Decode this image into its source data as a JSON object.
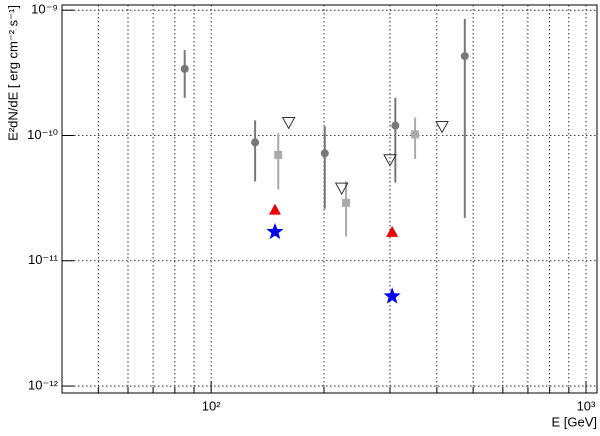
{
  "chart_data": {
    "type": "scatter",
    "xlabel": "E [GeV]",
    "ylabel": "E²dN/dE [ erg cm⁻² s⁻¹]",
    "xlog": true,
    "ylog": true,
    "grid": true,
    "xlim": [
      40,
      1070
    ],
    "ylim": [
      8.8e-13,
      1.1e-09
    ],
    "xticks": [
      {
        "value": 100,
        "label": "10²"
      },
      {
        "value": 1000,
        "label": "10³"
      }
    ],
    "xgrid_minor": [
      50,
      60,
      70,
      80,
      90,
      200,
      300,
      400,
      500,
      600,
      700,
      800,
      900
    ],
    "yticks": [
      {
        "value": 1e-12,
        "label": "10⁻¹²"
      },
      {
        "value": 1e-11,
        "label": "10⁻¹¹"
      },
      {
        "value": 1e-10,
        "label": "10⁻¹⁰"
      },
      {
        "value": 1e-09,
        "label": "10⁻⁹"
      }
    ],
    "series": [
      {
        "marker": "circle",
        "color": "#777777",
        "x": [
          85,
          131,
          201,
          310,
          475
        ],
        "values": [
          3.4e-10,
          8.8e-11,
          7.2e-11,
          1.2e-10,
          4.3e-10
        ],
        "lower": [
          2e-10,
          4.3e-11,
          2.6e-11,
          4.2e-11,
          2.2e-11
        ],
        "upper": [
          4.8e-10,
          1.32e-10,
          1.18e-10,
          2e-10,
          8.5e-10
        ]
      },
      {
        "marker": "square",
        "color": "#aaaaaa",
        "x": [
          151,
          229,
          350
        ],
        "values": [
          7e-11,
          2.9e-11,
          1.02e-10
        ],
        "lower": [
          3.7e-11,
          1.56e-11,
          6.5e-11
        ],
        "upper": [
          1.04e-10,
          4.3e-11,
          1.39e-10
        ]
      },
      {
        "marker": "triangle-down-open",
        "color": "#333333",
        "x": [
          161,
          223,
          300,
          413
        ],
        "values": [
          1.27e-10,
          3.8e-11,
          6.4e-11,
          1.18e-10
        ]
      },
      {
        "marker": "triangle-up",
        "color": "#ee0000",
        "x": [
          148,
          304
        ],
        "values": [
          2.56e-11,
          1.7e-11
        ]
      },
      {
        "marker": "star",
        "color": "#0000ee",
        "x": [
          148,
          304
        ],
        "values": [
          1.7e-11,
          5.2e-12
        ]
      }
    ]
  }
}
